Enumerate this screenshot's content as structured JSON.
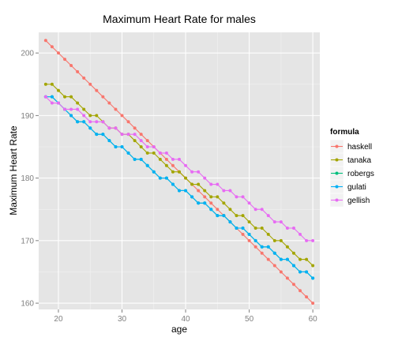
{
  "chart_data": {
    "type": "line",
    "title": "Maximum Heart Rate for males",
    "xlabel": "age",
    "ylabel": "Maximum Heart Rate",
    "xlim": [
      16.9,
      61.1
    ],
    "ylim": [
      159,
      203.3
    ],
    "xticks": [
      20,
      30,
      40,
      50,
      60
    ],
    "yticks": [
      160,
      170,
      180,
      190,
      200
    ],
    "grid": true,
    "legend": {
      "title": "formula",
      "position": "right"
    },
    "x": [
      18,
      19,
      20,
      21,
      22,
      23,
      24,
      25,
      26,
      27,
      28,
      29,
      30,
      31,
      32,
      33,
      34,
      35,
      36,
      37,
      38,
      39,
      40,
      41,
      42,
      43,
      44,
      45,
      46,
      47,
      48,
      49,
      50,
      51,
      52,
      53,
      54,
      55,
      56,
      57,
      58,
      59,
      60
    ],
    "series": [
      {
        "name": "haskell",
        "color": "#F8766D",
        "values": [
          202,
          201,
          200,
          199,
          198,
          197,
          196,
          195,
          194,
          193,
          192,
          191,
          190,
          189,
          188,
          187,
          186,
          185,
          184,
          183,
          182,
          181,
          180,
          179,
          178,
          177,
          176,
          175,
          174,
          173,
          172,
          171,
          170,
          169,
          168,
          167,
          166,
          165,
          164,
          163,
          162,
          161,
          160
        ]
      },
      {
        "name": "tanaka",
        "color": "#A3A500",
        "values": [
          195,
          195,
          194,
          193,
          193,
          192,
          191,
          190,
          190,
          189,
          188,
          188,
          187,
          187,
          186,
          185,
          184,
          184,
          183,
          182,
          181,
          181,
          180,
          179,
          179,
          178,
          177,
          177,
          176,
          175,
          174,
          174,
          173,
          172,
          172,
          171,
          170,
          170,
          169,
          168,
          167,
          167,
          166
        ]
      },
      {
        "name": "robergs",
        "color": "#00BF7D",
        "values": [
          193,
          193,
          192,
          191,
          190,
          189,
          189,
          188,
          187,
          187,
          186,
          185,
          185,
          184,
          183,
          183,
          182,
          181,
          180,
          180,
          179,
          178,
          178,
          177,
          176,
          176,
          175,
          174,
          174,
          173,
          172,
          172,
          171,
          170,
          169,
          169,
          168,
          167,
          167,
          166,
          165,
          165,
          164
        ]
      },
      {
        "name": "gulati",
        "color": "#00B0F6",
        "values": [
          193,
          193,
          192,
          191,
          190,
          189,
          189,
          188,
          187,
          187,
          186,
          185,
          185,
          184,
          183,
          183,
          182,
          181,
          180,
          180,
          179,
          178,
          178,
          177,
          176,
          176,
          175,
          174,
          174,
          173,
          172,
          172,
          171,
          170,
          169,
          169,
          168,
          167,
          167,
          166,
          165,
          165,
          164
        ]
      },
      {
        "name": "gellish",
        "color": "#E76BF3",
        "values": [
          193,
          192,
          192,
          191,
          191,
          191,
          190,
          189,
          189,
          189,
          188,
          188,
          187,
          187,
          187,
          186,
          185,
          185,
          184,
          184,
          183,
          183,
          182,
          181,
          181,
          180,
          179,
          179,
          178,
          178,
          177,
          177,
          176,
          175,
          175,
          174,
          173,
          173,
          172,
          172,
          171,
          170,
          170
        ]
      }
    ]
  }
}
